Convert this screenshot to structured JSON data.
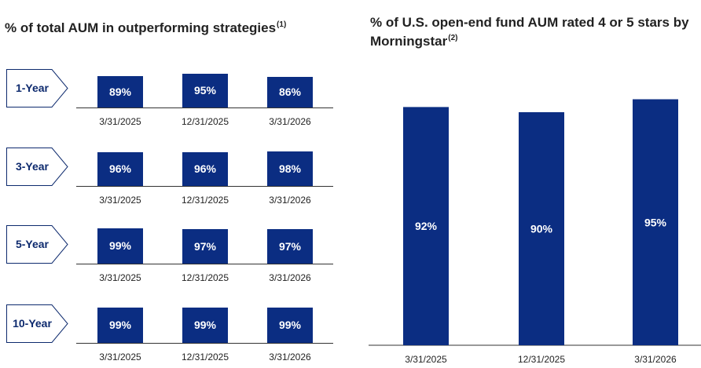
{
  "left_panel": {
    "title": "% of total AUM in outperforming strategies",
    "title_note": "(1)"
  },
  "right_panel": {
    "title": "% of U.S. open-end fund AUM rated 4 or 5 stars by Morningstar",
    "title_note": "(2)"
  },
  "colors": {
    "bar": "#0b2d82",
    "tag_text": "#0d2a6e",
    "tag_border": "#0d2a6e"
  },
  "chart_data": [
    {
      "type": "bar",
      "panel": "left",
      "groups": [
        "1-Year",
        "3-Year",
        "5-Year",
        "10-Year"
      ],
      "categories": [
        "3/31/2025",
        "12/31/2025",
        "3/31/2026"
      ],
      "series": [
        {
          "name": "1-Year",
          "values": [
            89,
            95,
            86
          ],
          "labels": [
            "89%",
            "95%",
            "86%"
          ]
        },
        {
          "name": "3-Year",
          "values": [
            96,
            96,
            98
          ],
          "labels": [
            "96%",
            "96%",
            "98%"
          ]
        },
        {
          "name": "5-Year",
          "values": [
            99,
            97,
            97
          ],
          "labels": [
            "99%",
            "97%",
            "97%"
          ]
        },
        {
          "name": "10-Year",
          "values": [
            99,
            99,
            99
          ],
          "labels": [
            "99%",
            "99%",
            "99%"
          ]
        }
      ],
      "ylim": [
        0,
        100
      ]
    },
    {
      "type": "bar",
      "panel": "right",
      "categories": [
        "3/31/2025",
        "12/31/2025",
        "3/31/2026"
      ],
      "values": [
        92,
        90,
        95
      ],
      "labels": [
        "92%",
        "90%",
        "95%"
      ],
      "ylim": [
        0,
        100
      ]
    }
  ]
}
